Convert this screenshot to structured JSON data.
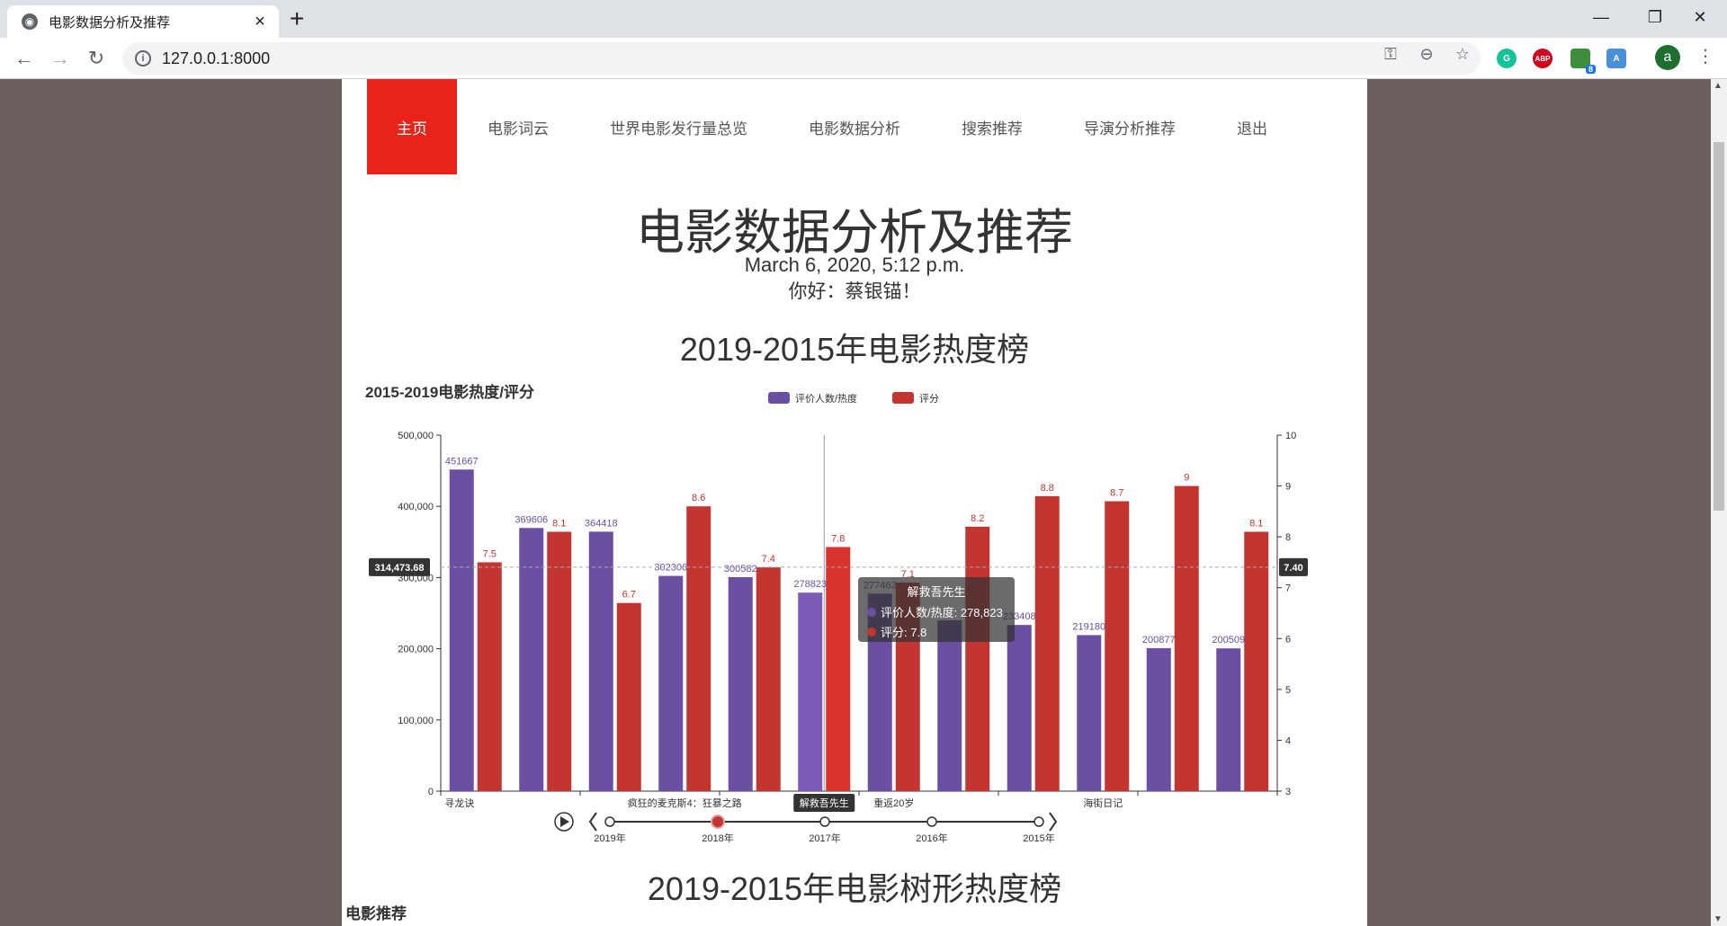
{
  "browser": {
    "tab_title": "电影数据分析及推荐",
    "url": "127.0.0.1:8000",
    "avatar_letter": "a",
    "ext_abp": "ABP",
    "ext_badge": "8"
  },
  "nav": {
    "items": [
      "主页",
      "电影词云",
      "世界电影发行量总览",
      "电影数据分析",
      "搜索推荐",
      "导演分析推荐",
      "退出"
    ]
  },
  "header": {
    "title": "电影数据分析及推荐",
    "date": "March 6, 2020, 5:12 p.m.",
    "greeting": "你好：蔡银锚！"
  },
  "sections": {
    "hot_rank": "2019-2015年电影热度榜",
    "tree_rank": "2019-2015年电影树形热度榜",
    "recommend": "电影推荐"
  },
  "chart_data": {
    "type": "bar",
    "title": "2015-2019电影热度/评分",
    "legend": [
      "评价人数/热度",
      "评分"
    ],
    "legend_position": "top-center",
    "colors": {
      "heat": "#6a4fa3",
      "score": "#c23531"
    },
    "bars": [
      {
        "heat": 451667,
        "score": 7.5
      },
      {
        "heat": 369606,
        "score": 8.1
      },
      {
        "heat": 364418,
        "score": 6.7
      },
      {
        "heat": 302306,
        "score": 8.6
      },
      {
        "heat": 300582,
        "score": 7.4
      },
      {
        "heat": 278823,
        "score": 7.8
      },
      {
        "heat": 277462,
        "score": 7.1
      },
      {
        "heat": 240000,
        "score": 8.2
      },
      {
        "heat": 233408,
        "score": 8.8
      },
      {
        "heat": 219180,
        "score": 8.7
      },
      {
        "heat": 200877,
        "score": 9.0
      },
      {
        "heat": 200509,
        "score": 8.1
      }
    ],
    "heat_labels": [
      "451667",
      "369606",
      "364418",
      "302306",
      "300582",
      "278823",
      "277462",
      "",
      "233408",
      "219180",
      "200877",
      "200509"
    ],
    "score_labels": [
      "7.5",
      "8.1",
      "6.7",
      "8.6",
      "7.4",
      "7.8",
      "7.1",
      "8.2",
      "8.8",
      "8.7",
      "9",
      "8.1"
    ],
    "x_labels": [
      {
        "bar": 0,
        "text": "寻龙诀"
      },
      {
        "bar": 3,
        "text": "疯狂的麦克斯4：狂暴之路"
      },
      {
        "bar": 5,
        "text": "解救吾先生"
      },
      {
        "bar": 6,
        "text": "重返20岁"
      },
      {
        "bar": 9,
        "text": "海街日记"
      }
    ],
    "y_left": {
      "min": 0,
      "max": 500000,
      "ticks": [
        "0",
        "100,000",
        "200,000",
        "300,000",
        "400,000",
        "500,000"
      ]
    },
    "y_right": {
      "min": 3,
      "max": 10,
      "ticks": [
        "3",
        "4",
        "5",
        "6",
        "7",
        "8",
        "9",
        "10"
      ]
    },
    "crosshair": {
      "left_value": "314,473.68",
      "right_value": "7.40",
      "bar": 5
    },
    "tooltip": {
      "title": "解救吾先生",
      "heat_line": "评价人数/热度: 278,823",
      "score_line": "评分: 7.8"
    },
    "timeline": {
      "years": [
        "2019年",
        "2018年",
        "2017年",
        "2016年",
        "2015年"
      ],
      "active_index": 1
    }
  }
}
